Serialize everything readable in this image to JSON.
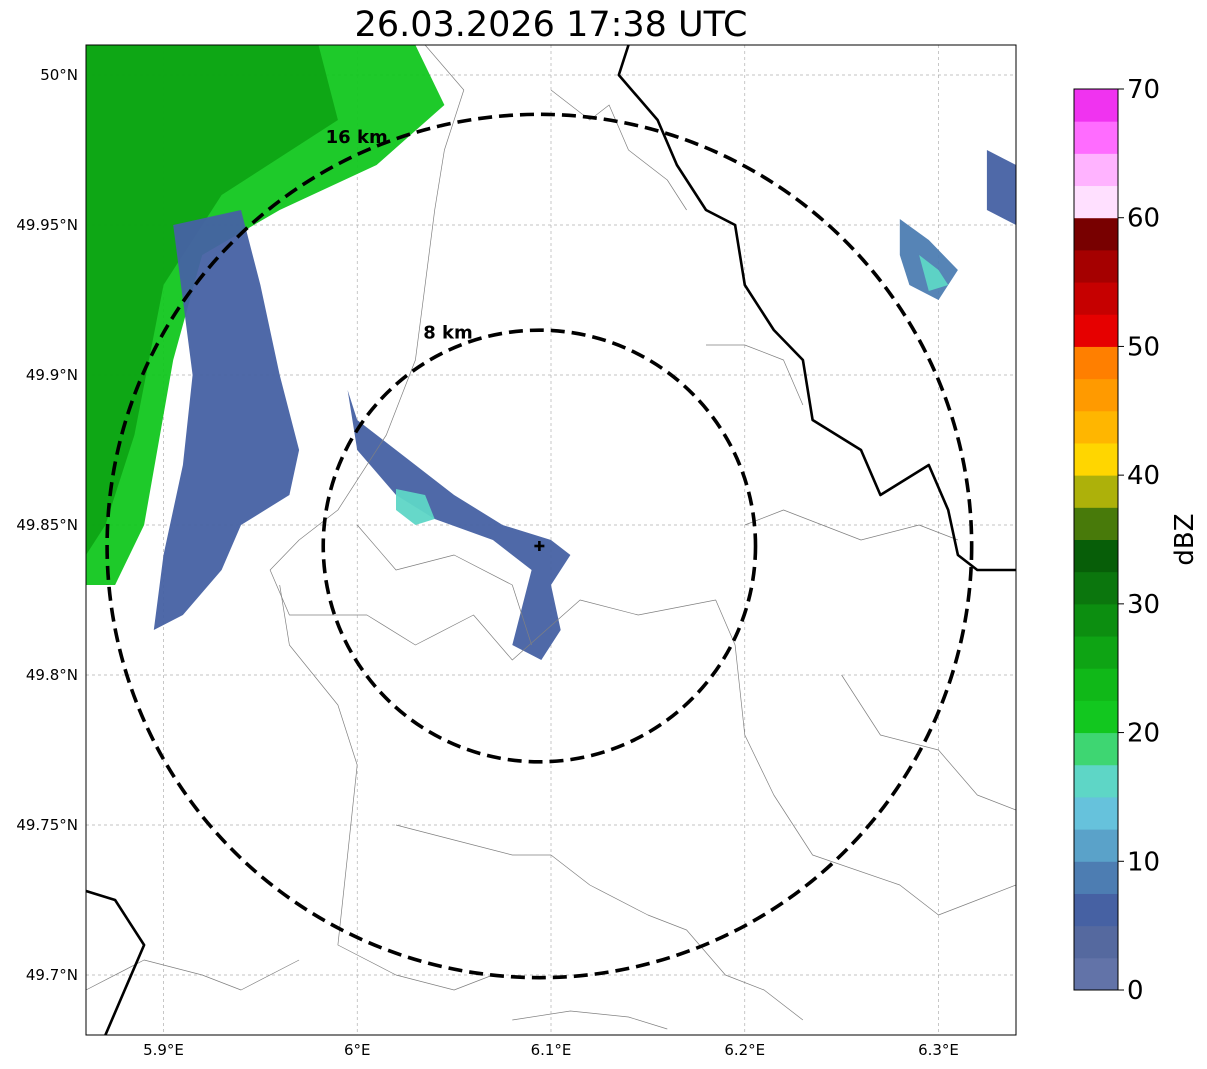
{
  "title": "26.03.2026 17:38 UTC",
  "map": {
    "lon_range": [
      5.86,
      6.34
    ],
    "lat_range": [
      49.68,
      50.01
    ],
    "grid": true,
    "lon_ticks": [
      {
        "value": 5.9,
        "label": "5.9°E"
      },
      {
        "value": 6.0,
        "label": "6°E"
      },
      {
        "value": 6.1,
        "label": "6.1°E"
      },
      {
        "value": 6.2,
        "label": "6.2°E"
      },
      {
        "value": 6.3,
        "label": "6.3°E"
      }
    ],
    "lat_ticks": [
      {
        "value": 49.7,
        "label": "49.7°N"
      },
      {
        "value": 49.75,
        "label": "49.75°N"
      },
      {
        "value": 49.8,
        "label": "49.8°N"
      },
      {
        "value": 49.85,
        "label": "49.85°N"
      },
      {
        "value": 49.9,
        "label": "49.9°N"
      },
      {
        "value": 49.95,
        "label": "49.95°N"
      },
      {
        "value": 50.0,
        "label": "50°N"
      }
    ],
    "center": {
      "lon": 6.094,
      "lat": 49.843
    },
    "range_rings": [
      {
        "radius_km": 8,
        "label": "8 km"
      },
      {
        "radius_km": 16,
        "label": "16 km"
      }
    ]
  },
  "colorbar": {
    "label": "dBZ",
    "min": 0,
    "max": 70,
    "step": 2.5,
    "ticks": [
      {
        "value": 0,
        "label": "0"
      },
      {
        "value": 10,
        "label": "10"
      },
      {
        "value": 20,
        "label": "20"
      },
      {
        "value": 30,
        "label": "30"
      },
      {
        "value": 40,
        "label": "40"
      },
      {
        "value": 50,
        "label": "50"
      },
      {
        "value": 60,
        "label": "60"
      },
      {
        "value": 70,
        "label": "70"
      }
    ],
    "colors": [
      "#6273a8",
      "#55699f",
      "#4661a3",
      "#4d7db2",
      "#5aa2c9",
      "#66c2dc",
      "#5ed6c6",
      "#3ed672",
      "#12c71f",
      "#10b818",
      "#0ea414",
      "#0c8e10",
      "#0b760d",
      "#075e08",
      "#487a0a",
      "#adb10a",
      "#ffd600",
      "#ffb600",
      "#ff9a00",
      "#ff7f00",
      "#e60000",
      "#c60000",
      "#a50000",
      "#780000",
      "#ffe0ff",
      "#ffb3ff",
      "#ff6cff",
      "#f033f0"
    ]
  },
  "echoes": [
    {
      "name": "northwest-band",
      "dbz": 22,
      "points": [
        [
          5.86,
          50.01
        ],
        [
          6.03,
          50.01
        ],
        [
          6.045,
          49.99
        ],
        [
          6.01,
          49.97
        ],
        [
          5.96,
          49.955
        ],
        [
          5.92,
          49.94
        ],
        [
          5.905,
          49.905
        ],
        [
          5.89,
          49.85
        ],
        [
          5.875,
          49.83
        ],
        [
          5.86,
          49.83
        ]
      ]
    },
    {
      "name": "northwest-band-core",
      "dbz": 26,
      "points": [
        [
          5.86,
          50.01
        ],
        [
          5.98,
          50.01
        ],
        [
          5.99,
          49.985
        ],
        [
          5.93,
          49.96
        ],
        [
          5.9,
          49.93
        ],
        [
          5.885,
          49.88
        ],
        [
          5.87,
          49.85
        ],
        [
          5.86,
          49.84
        ]
      ]
    },
    {
      "name": "northwest-band-edge",
      "dbz": 6,
      "points": [
        [
          5.905,
          49.95
        ],
        [
          5.94,
          49.955
        ],
        [
          5.95,
          49.93
        ],
        [
          5.96,
          49.9
        ],
        [
          5.97,
          49.875
        ],
        [
          5.965,
          49.86
        ],
        [
          5.94,
          49.85
        ],
        [
          5.93,
          49.835
        ],
        [
          5.91,
          49.82
        ],
        [
          5.895,
          49.815
        ],
        [
          5.9,
          49.84
        ],
        [
          5.91,
          49.87
        ],
        [
          5.915,
          49.9
        ]
      ]
    },
    {
      "name": "central-streak",
      "dbz": 5,
      "points": [
        [
          5.995,
          49.895
        ],
        [
          6.0,
          49.885
        ],
        [
          6.03,
          49.87
        ],
        [
          6.05,
          49.86
        ],
        [
          6.075,
          49.85
        ],
        [
          6.1,
          49.845
        ],
        [
          6.11,
          49.84
        ],
        [
          6.1,
          49.83
        ],
        [
          6.105,
          49.815
        ],
        [
          6.095,
          49.805
        ],
        [
          6.08,
          49.81
        ],
        [
          6.09,
          49.835
        ],
        [
          6.07,
          49.845
        ],
        [
          6.04,
          49.852
        ],
        [
          6.02,
          49.86
        ],
        [
          6.0,
          49.875
        ]
      ]
    },
    {
      "name": "central-streak-core",
      "dbz": 16,
      "points": [
        [
          6.02,
          49.862
        ],
        [
          6.035,
          49.86
        ],
        [
          6.04,
          49.852
        ],
        [
          6.03,
          49.85
        ],
        [
          6.02,
          49.855
        ]
      ]
    },
    {
      "name": "east-cell",
      "dbz": 8,
      "points": [
        [
          6.28,
          49.952
        ],
        [
          6.295,
          49.945
        ],
        [
          6.31,
          49.935
        ],
        [
          6.3,
          49.925
        ],
        [
          6.285,
          49.93
        ],
        [
          6.28,
          49.94
        ]
      ]
    },
    {
      "name": "east-cell-core",
      "dbz": 17,
      "points": [
        [
          6.29,
          49.94
        ],
        [
          6.3,
          49.935
        ],
        [
          6.305,
          49.93
        ],
        [
          6.295,
          49.928
        ]
      ]
    },
    {
      "name": "far-east-cell",
      "dbz": 6,
      "points": [
        [
          6.325,
          49.975
        ],
        [
          6.34,
          49.97
        ],
        [
          6.34,
          49.95
        ],
        [
          6.325,
          49.955
        ]
      ]
    }
  ],
  "borders": {
    "thick": [
      [
        [
          6.14,
          50.01
        ],
        [
          6.135,
          50.0
        ],
        [
          6.155,
          49.985
        ],
        [
          6.165,
          49.97
        ],
        [
          6.18,
          49.955
        ],
        [
          6.195,
          49.95
        ],
        [
          6.2,
          49.93
        ],
        [
          6.215,
          49.915
        ],
        [
          6.23,
          49.905
        ],
        [
          6.235,
          49.885
        ],
        [
          6.26,
          49.875
        ],
        [
          6.27,
          49.86
        ],
        [
          6.295,
          49.87
        ],
        [
          6.305,
          49.855
        ],
        [
          6.31,
          49.84
        ],
        [
          6.32,
          49.835
        ],
        [
          6.34,
          49.835
        ]
      ],
      [
        [
          5.86,
          49.728
        ],
        [
          5.875,
          49.725
        ],
        [
          5.89,
          49.71
        ],
        [
          5.88,
          49.695
        ],
        [
          5.87,
          49.68
        ]
      ]
    ],
    "thin": [
      [
        [
          6.035,
          50.01
        ],
        [
          6.055,
          49.995
        ],
        [
          6.045,
          49.975
        ],
        [
          6.04,
          49.955
        ],
        [
          6.035,
          49.93
        ],
        [
          6.03,
          49.905
        ],
        [
          6.015,
          49.88
        ],
        [
          5.99,
          49.855
        ],
        [
          5.97,
          49.845
        ],
        [
          5.955,
          49.835
        ],
        [
          5.965,
          49.82
        ],
        [
          6.005,
          49.82
        ],
        [
          6.03,
          49.81
        ],
        [
          6.06,
          49.82
        ],
        [
          6.08,
          49.805
        ],
        [
          6.115,
          49.825
        ],
        [
          6.145,
          49.82
        ],
        [
          6.185,
          49.825
        ],
        [
          6.195,
          49.81
        ],
        [
          6.2,
          49.78
        ],
        [
          6.215,
          49.76
        ],
        [
          6.235,
          49.74
        ],
        [
          6.28,
          49.73
        ],
        [
          6.3,
          49.72
        ],
        [
          6.32,
          49.725
        ],
        [
          6.34,
          49.73
        ]
      ],
      [
        [
          6.1,
          49.995
        ],
        [
          6.12,
          49.985
        ],
        [
          6.13,
          49.99
        ],
        [
          6.14,
          49.975
        ],
        [
          6.16,
          49.965
        ],
        [
          6.17,
          49.955
        ]
      ],
      [
        [
          6.0,
          49.85
        ],
        [
          6.02,
          49.835
        ],
        [
          6.05,
          49.84
        ],
        [
          6.08,
          49.83
        ],
        [
          6.09,
          49.81
        ]
      ],
      [
        [
          5.96,
          49.83
        ],
        [
          5.965,
          49.81
        ],
        [
          5.99,
          49.79
        ],
        [
          6.0,
          49.77
        ],
        [
          5.995,
          49.74
        ],
        [
          5.99,
          49.71
        ],
        [
          6.02,
          49.7
        ],
        [
          6.05,
          49.695
        ],
        [
          6.07,
          49.7
        ]
      ],
      [
        [
          6.1,
          49.74
        ],
        [
          6.12,
          49.73
        ],
        [
          6.15,
          49.72
        ],
        [
          6.17,
          49.715
        ],
        [
          6.19,
          49.7
        ],
        [
          6.21,
          49.695
        ],
        [
          6.23,
          49.685
        ]
      ],
      [
        [
          5.86,
          49.695
        ],
        [
          5.89,
          49.705
        ],
        [
          5.92,
          49.7
        ],
        [
          5.94,
          49.695
        ],
        [
          5.97,
          49.705
        ]
      ],
      [
        [
          6.2,
          49.85
        ],
        [
          6.22,
          49.855
        ],
        [
          6.26,
          49.845
        ],
        [
          6.29,
          49.85
        ],
        [
          6.31,
          49.845
        ]
      ],
      [
        [
          6.25,
          49.8
        ],
        [
          6.27,
          49.78
        ],
        [
          6.3,
          49.775
        ],
        [
          6.32,
          49.76
        ],
        [
          6.34,
          49.755
        ]
      ],
      [
        [
          6.18,
          49.91
        ],
        [
          6.2,
          49.91
        ],
        [
          6.22,
          49.905
        ],
        [
          6.23,
          49.89
        ]
      ],
      [
        [
          6.02,
          49.75
        ],
        [
          6.05,
          49.745
        ],
        [
          6.08,
          49.74
        ],
        [
          6.1,
          49.74
        ]
      ],
      [
        [
          6.08,
          49.685
        ],
        [
          6.11,
          49.688
        ],
        [
          6.14,
          49.686
        ],
        [
          6.16,
          49.682
        ]
      ]
    ]
  }
}
